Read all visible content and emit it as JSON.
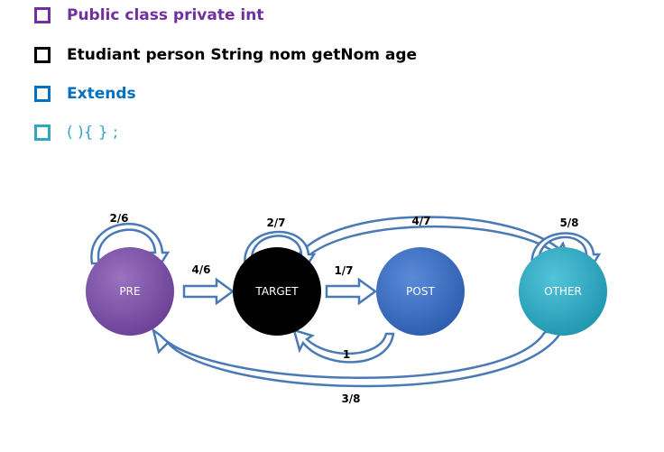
{
  "legend": {
    "items": [
      {
        "text": "Public class private int",
        "color": "#7030A0"
      },
      {
        "text": "Etudiant  person String nom getNom  age",
        "color": "#000000"
      },
      {
        "text": "Extends",
        "color": "#0070C0"
      },
      {
        "text": "( ){ }  ;",
        "color": "#31A6C0"
      }
    ]
  },
  "diagram": {
    "nodes": {
      "pre": {
        "label": "PRE",
        "color": "#7a4fa0"
      },
      "target": {
        "label": "TARGET",
        "color": "#000000"
      },
      "post": {
        "label": "POST",
        "color": "#3a6fc4"
      },
      "other": {
        "label": "OTHER",
        "color": "#2aa8c0"
      }
    },
    "edges": {
      "pre_self": "2/6",
      "pre_target": "4/6",
      "target_self": "2/7",
      "target_post": "1/7",
      "target_other": "4/7",
      "other_self": "5/8",
      "post_target": "1",
      "other_pre": "3/8"
    }
  }
}
